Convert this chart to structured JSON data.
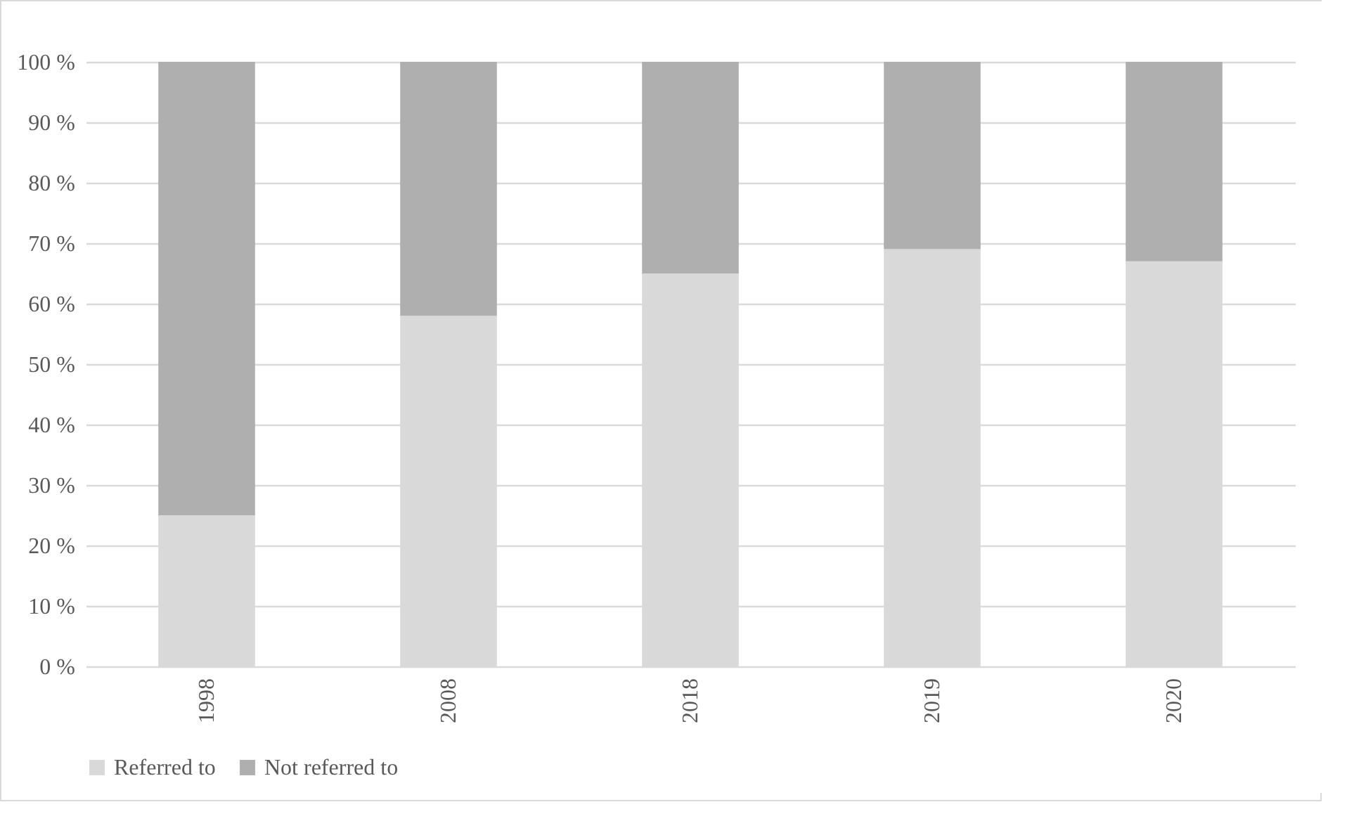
{
  "chart_data": {
    "type": "bar",
    "stacked": true,
    "categories": [
      "1998",
      "2008",
      "2018",
      "2019",
      "2020"
    ],
    "series": [
      {
        "name": "Referred to",
        "color": "#d9d9d9",
        "values": [
          25,
          58,
          65,
          69,
          67
        ]
      },
      {
        "name": "Not referred to",
        "color": "#afafaf",
        "values": [
          75,
          42,
          35,
          31,
          33
        ]
      }
    ],
    "ylim": [
      0,
      100
    ],
    "yticks": [
      {
        "value": 0,
        "label": "0 %"
      },
      {
        "value": 10,
        "label": "10 %"
      },
      {
        "value": 20,
        "label": "20 %"
      },
      {
        "value": 30,
        "label": "30 %"
      },
      {
        "value": 40,
        "label": "40 %"
      },
      {
        "value": 50,
        "label": "50 %"
      },
      {
        "value": 60,
        "label": "60 %"
      },
      {
        "value": 70,
        "label": "70 %"
      },
      {
        "value": 80,
        "label": "80 %"
      },
      {
        "value": 90,
        "label": "90 %"
      },
      {
        "value": 100,
        "label": "100 %"
      }
    ],
    "grid": "y",
    "legend": "bottom"
  }
}
